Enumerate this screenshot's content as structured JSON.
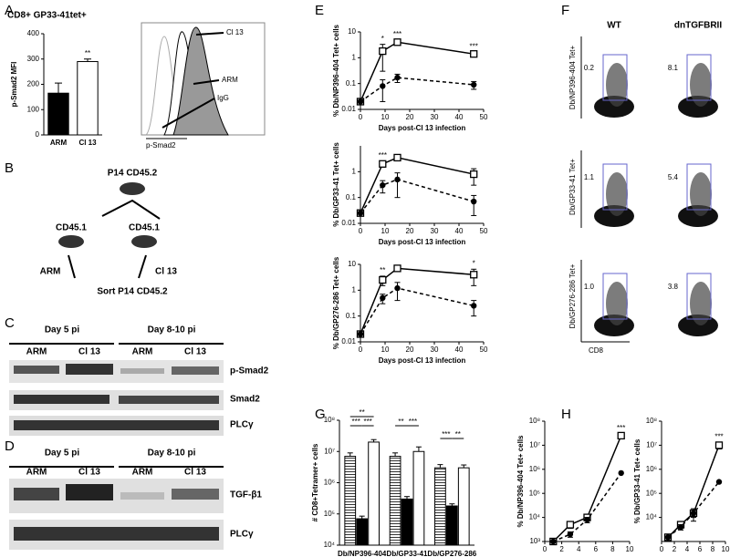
{
  "panel_labels": [
    "A",
    "B",
    "C",
    "D",
    "E",
    "F",
    "G",
    "H"
  ],
  "histogram": {
    "labels": [
      "Cl 13",
      "ARM",
      "IgG"
    ],
    "x_label": "p-Smad2"
  },
  "diagram": {
    "top": "P14 CD45.2",
    "left": "CD45.1",
    "right": "CD45.1",
    "left_infection": "ARM",
    "right_infection": "Cl 13",
    "bottom": "Sort P14 CD45.2"
  },
  "blot_C": {
    "groups": [
      "Day 5 pi",
      "Day 8-10 pi"
    ],
    "lanes": [
      "ARM",
      "Cl 13",
      "ARM",
      "Cl 13"
    ],
    "bands": [
      "p-Smad2",
      "Smad2",
      "PLCγ"
    ]
  },
  "blot_D": {
    "groups": [
      "Day 5 pi",
      "Day 8-10 pi"
    ],
    "lanes": [
      "ARM",
      "Cl 13",
      "ARM",
      "Cl 13"
    ],
    "bands": [
      "TGF-β1",
      "PLCγ"
    ]
  },
  "flow": {
    "columns": [
      "WT",
      "dnTGFBRII"
    ],
    "rows": [
      {
        "label": "Db/NP396-404 Tet+",
        "values": [
          "0.2",
          "8.1"
        ]
      },
      {
        "label": "Db/GP33-41 Tet+",
        "values": [
          "1.1",
          "5.4"
        ]
      },
      {
        "label": "Db/GP276-286 Tet+",
        "values": [
          "1.0",
          "3.8"
        ]
      }
    ],
    "x_label": "CD8"
  },
  "chart_data": [
    {
      "type": "bar",
      "title": "CD8+ GP33-41tet+",
      "y_label": "p-Smad2 MFI",
      "categories": [
        "ARM",
        "Cl 13"
      ],
      "values": [
        165,
        290
      ],
      "errors": [
        40,
        10
      ],
      "colors": [
        "#000000",
        "#ffffff"
      ],
      "ylim": [
        0,
        400
      ],
      "yticks": [
        0,
        100,
        200,
        300,
        400
      ],
      "significance": [
        null,
        "**"
      ]
    },
    {
      "type": "line",
      "log_y": true,
      "y_label": "% Db/NP396-404 Tet+ cells",
      "x_label": "Days post-Cl 13 infection",
      "x": [
        0,
        9,
        15,
        46
      ],
      "xlim": [
        0,
        50
      ],
      "xticks": [
        0,
        10,
        20,
        30,
        40,
        50
      ],
      "ylim": [
        0.01,
        10
      ],
      "yticks": [
        0.01,
        0.1,
        1,
        10
      ],
      "significance": [
        null,
        "*",
        "***",
        "***"
      ],
      "series": [
        {
          "color": "#000000",
          "marker": "open-square",
          "dashed": false,
          "values": [
            0.02,
            1.8,
            4,
            1.4
          ],
          "errors": [
            0,
            1.5,
            0.8,
            0.2
          ]
        },
        {
          "color": "#000000",
          "marker": "filled-circle",
          "dashed": true,
          "values": [
            0.02,
            0.08,
            0.17,
            0.09
          ],
          "errors": [
            0,
            0.06,
            0.06,
            0.03
          ]
        }
      ]
    },
    {
      "type": "line",
      "log_y": true,
      "y_label": "% Db/GP33-41 Tet+ cells",
      "x_label": "Days post-Cl 13 infection",
      "x": [
        0,
        9,
        15,
        46
      ],
      "xlim": [
        0,
        50
      ],
      "xticks": [
        0,
        10,
        20,
        30,
        40,
        50
      ],
      "ylim": [
        0.01,
        10
      ],
      "yticks": [
        0.01,
        0.1,
        1
      ],
      "significance": [
        null,
        "***",
        null,
        null
      ],
      "series": [
        {
          "color": "#000000",
          "marker": "open-square",
          "dashed": false,
          "values": [
            0.025,
            2,
            3.5,
            0.8
          ],
          "errors": [
            0,
            0.5,
            0.5,
            0.5
          ]
        },
        {
          "color": "#000000",
          "marker": "filled-circle",
          "dashed": true,
          "values": [
            0.025,
            0.3,
            0.5,
            0.07
          ],
          "errors": [
            0,
            0.15,
            0.4,
            0.05
          ]
        }
      ]
    },
    {
      "type": "line",
      "log_y": true,
      "y_label": "% Db/GP276-286 Tet+ cells",
      "x_label": "Days post-Cl 13 infection",
      "x": [
        0,
        9,
        15,
        46
      ],
      "xlim": [
        0,
        50
      ],
      "xticks": [
        0,
        10,
        20,
        30,
        40,
        50
      ],
      "ylim": [
        0.01,
        10
      ],
      "yticks": [
        0.01,
        0.1,
        1,
        10
      ],
      "significance": [
        null,
        "**",
        null,
        "*"
      ],
      "series": [
        {
          "color": "#000000",
          "marker": "open-square",
          "dashed": false,
          "values": [
            0.02,
            2.5,
            7,
            4
          ],
          "errors": [
            0,
            1,
            0.5,
            2.5
          ]
        },
        {
          "color": "#000000",
          "marker": "filled-circle",
          "dashed": true,
          "values": [
            0.02,
            0.5,
            1.2,
            0.25
          ],
          "errors": [
            0,
            0.2,
            0.8,
            0.15
          ]
        }
      ]
    },
    {
      "type": "grouped_bar",
      "log_y": true,
      "y_label": "# CD8+Tetramer+ cells",
      "categories": [
        "Db/NP396-404",
        "Db/GP33-41",
        "Db/GP276-286"
      ],
      "ylim": [
        10000,
        100000000
      ],
      "yticks": [
        {
          "value": 10000,
          "label": "10⁴"
        },
        {
          "value": 100000,
          "label": "10⁵"
        },
        {
          "value": 1000000,
          "label": "10⁶"
        },
        {
          "value": 10000000,
          "label": "10⁷"
        },
        {
          "value": 100000000,
          "label": "10⁸"
        }
      ],
      "series": [
        {
          "color": "#000000",
          "fill": "hatched",
          "values": [
            7000000,
            7000000,
            3000000
          ],
          "errors": [
            2000000,
            2000000,
            800000
          ]
        },
        {
          "color": "#000000",
          "fill": "solid",
          "values": [
            70000,
            300000,
            180000
          ],
          "errors": [
            15000,
            60000,
            30000
          ]
        },
        {
          "color": "#000000",
          "fill": "open",
          "values": [
            20000000,
            10000000,
            3000000
          ],
          "errors": [
            4000000,
            4000000,
            700000
          ]
        }
      ],
      "comparisons": [
        "**",
        "***",
        "***",
        "**",
        "***",
        "***",
        "**"
      ]
    },
    {
      "type": "line",
      "log_y": true,
      "y_label": "% Db/NP396-404 Tet+ cells",
      "x_label": "Days pi",
      "x": [
        1,
        3,
        5,
        9
      ],
      "xlim": [
        0,
        10
      ],
      "xticks": [
        0,
        2,
        4,
        6,
        8,
        10
      ],
      "ylim": [
        1000,
        100000000
      ],
      "yticks": [
        {
          "value": 1000,
          "label": "10³"
        },
        {
          "value": 10000,
          "label": "10⁴"
        },
        {
          "value": 100000,
          "label": "10⁵"
        },
        {
          "value": 1000000,
          "label": "10⁶"
        },
        {
          "value": 10000000,
          "label": "10⁷"
        },
        {
          "value": 100000000,
          "label": "10⁸"
        }
      ],
      "significance": [
        null,
        null,
        null,
        "***"
      ],
      "series": [
        {
          "color": "#000000",
          "marker": "open-square",
          "dashed": false,
          "values": [
            1000,
            5000,
            10000,
            25000000
          ],
          "errors": [
            0,
            1500,
            3000,
            5000000
          ]
        },
        {
          "color": "#000000",
          "marker": "filled-circle",
          "dashed": true,
          "values": [
            1000,
            2000,
            8000,
            700000
          ],
          "errors": [
            0,
            500,
            2000,
            0
          ]
        }
      ]
    },
    {
      "type": "line",
      "log_y": true,
      "y_label": "% Db/GP33-41 Tet+ cells",
      "x_label": "Days pi",
      "x": [
        1,
        3,
        5,
        9
      ],
      "xlim": [
        0,
        10
      ],
      "xticks": [
        0,
        2,
        4,
        6,
        8,
        10
      ],
      "ylim": [
        1000,
        100000000
      ],
      "yticks": [
        {
          "value": 10000,
          "label": "10⁴"
        },
        {
          "value": 100000,
          "label": "10⁵"
        },
        {
          "value": 1000000,
          "label": "10⁶"
        },
        {
          "value": 10000000,
          "label": "10⁷"
        },
        {
          "value": 100000000,
          "label": "10⁸"
        }
      ],
      "significance": [
        null,
        null,
        null,
        "***"
      ],
      "series": [
        {
          "color": "#000000",
          "marker": "open-square",
          "dashed": false,
          "values": [
            1500,
            5000,
            15000,
            10000000
          ],
          "errors": [
            0,
            1500,
            8000,
            3000000
          ]
        },
        {
          "color": "#000000",
          "marker": "filled-circle",
          "dashed": true,
          "values": [
            1500,
            4000,
            15000,
            300000
          ],
          "errors": [
            0,
            1000,
            5000,
            0
          ]
        }
      ]
    }
  ]
}
